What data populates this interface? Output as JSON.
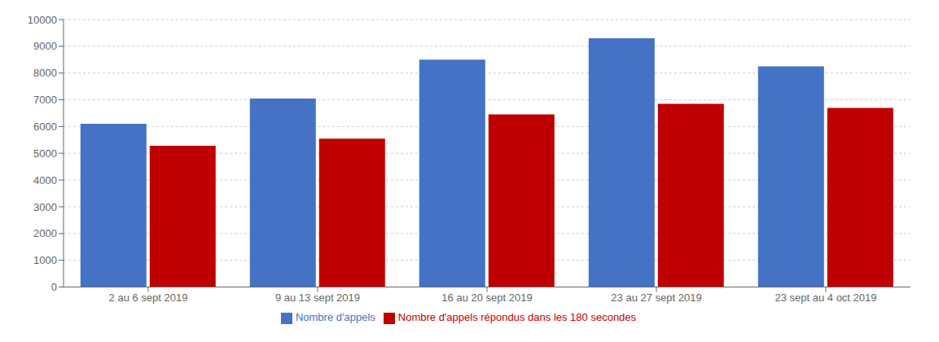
{
  "chart_data": {
    "type": "bar",
    "categories": [
      "2 au 6 sept 2019",
      "9 au 13 sept 2019",
      "16 au 20 sept 2019",
      "23 au 27 sept 2019",
      "23 sept au 4 oct 2019"
    ],
    "series": [
      {
        "name": "Nombre d'appels",
        "color": "#4472C4",
        "values": [
          6100,
          7050,
          8500,
          9300,
          8250
        ]
      },
      {
        "name": "Nombre d'appels répondus dans les 180 secondes",
        "color": "#C00000",
        "values": [
          5280,
          5550,
          6450,
          6850,
          6700
        ]
      }
    ],
    "ylim": [
      0,
      10000
    ],
    "yticks": [
      0,
      1000,
      2000,
      3000,
      4000,
      5000,
      6000,
      7000,
      8000,
      9000,
      10000
    ],
    "grid": true,
    "legend": "bottom"
  }
}
